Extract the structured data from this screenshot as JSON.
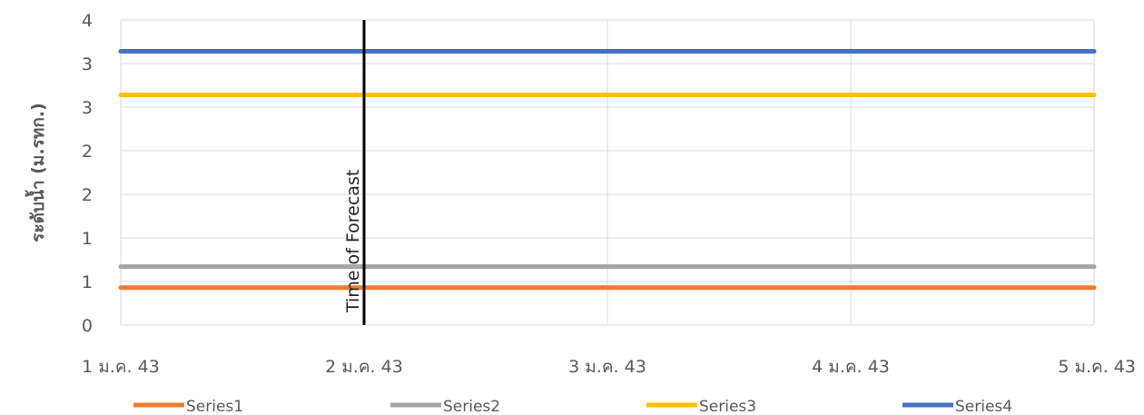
{
  "chart_data": {
    "type": "line",
    "title": "",
    "xlabel": "",
    "ylabel": "ระดับน้ำ (ม.รทก.)",
    "x": [
      "1 ม.ค. 43",
      "2 ม.ค. 43",
      "3 ม.ค. 43",
      "4 ม.ค. 43",
      "5 ม.ค. 43"
    ],
    "xlim": [
      "1 ม.ค. 43",
      "5 ม.ค. 43"
    ],
    "ylim": [
      0,
      3.5
    ],
    "ytick_values": [
      0,
      0.5,
      1,
      1.5,
      2,
      2.5,
      3,
      3.5
    ],
    "ytick_labels": [
      "0",
      "1",
      "1",
      "2",
      "2",
      "3",
      "3",
      "4"
    ],
    "grid": true,
    "legend_position": "bottom",
    "series": [
      {
        "name": "Series1",
        "color": "#ED7D31",
        "values": [
          0.43,
          0.43,
          0.43,
          0.43,
          0.43
        ]
      },
      {
        "name": "Series2",
        "color": "#A5A5A5",
        "values": [
          0.67,
          0.67,
          0.67,
          0.67,
          0.67
        ]
      },
      {
        "name": "Series3",
        "color": "#FFC000",
        "values": [
          2.64,
          2.64,
          2.64,
          2.64,
          2.64
        ]
      },
      {
        "name": "Series4",
        "color": "#4472C4",
        "values": [
          3.14,
          3.14,
          3.14,
          3.14,
          3.14
        ]
      }
    ],
    "annotations": [
      {
        "text": "Time of Forecast",
        "x": "2 ม.ค. 43",
        "type": "vertical-line",
        "color": "#000000"
      }
    ]
  }
}
